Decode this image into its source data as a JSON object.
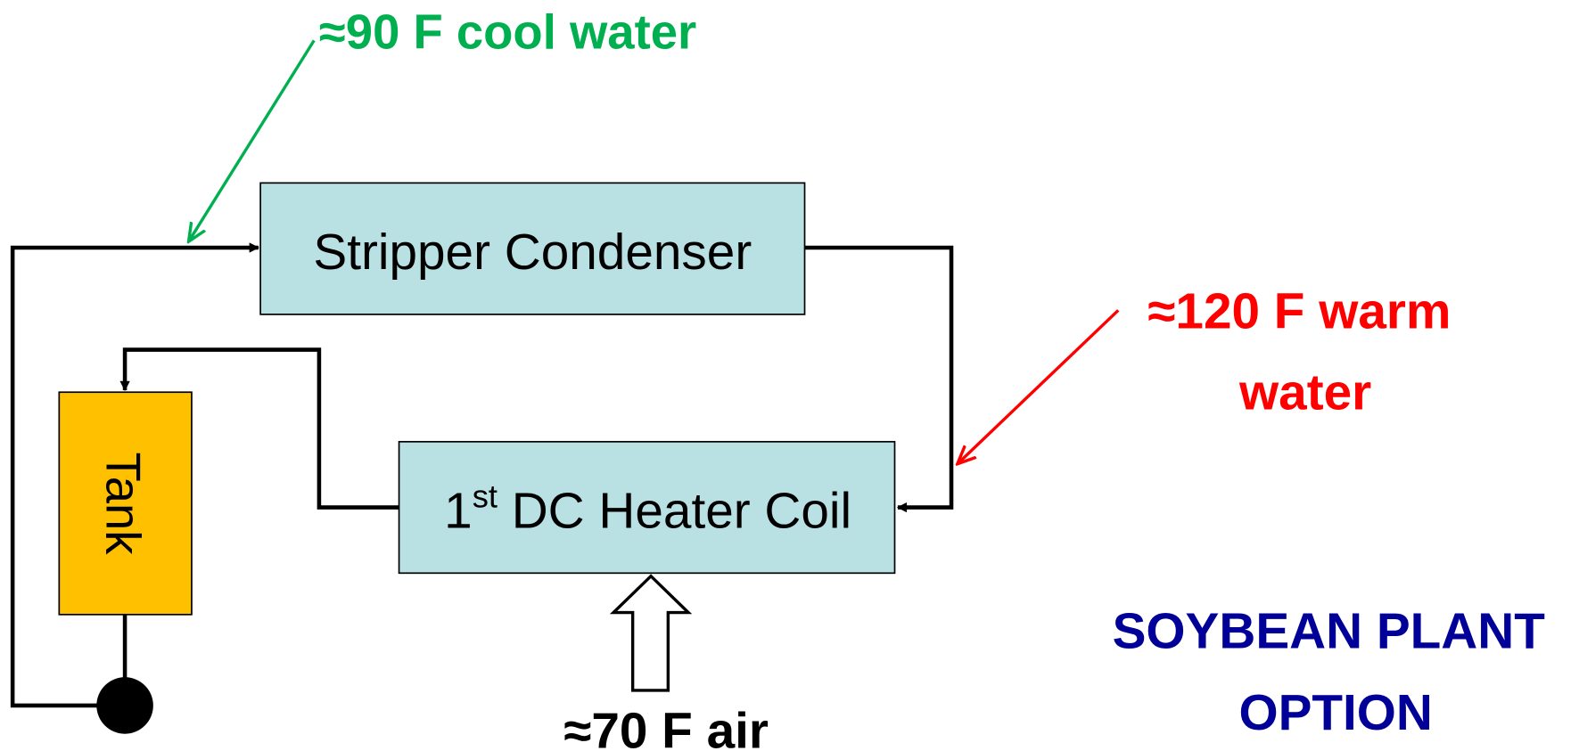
{
  "labels": {
    "cool_water": "≈90 F cool water",
    "warm_water": [
      "≈120 F warm",
      "water"
    ],
    "air": "≈70 F air",
    "plant": [
      "SOYBEAN PLANT",
      "OPTION"
    ]
  },
  "nodes": [
    {
      "label": "Stripper Condenser"
    },
    {
      "label": [
        "1",
        "st",
        " DC Heater Coil"
      ]
    },
    {
      "label": "Tank"
    }
  ]
}
